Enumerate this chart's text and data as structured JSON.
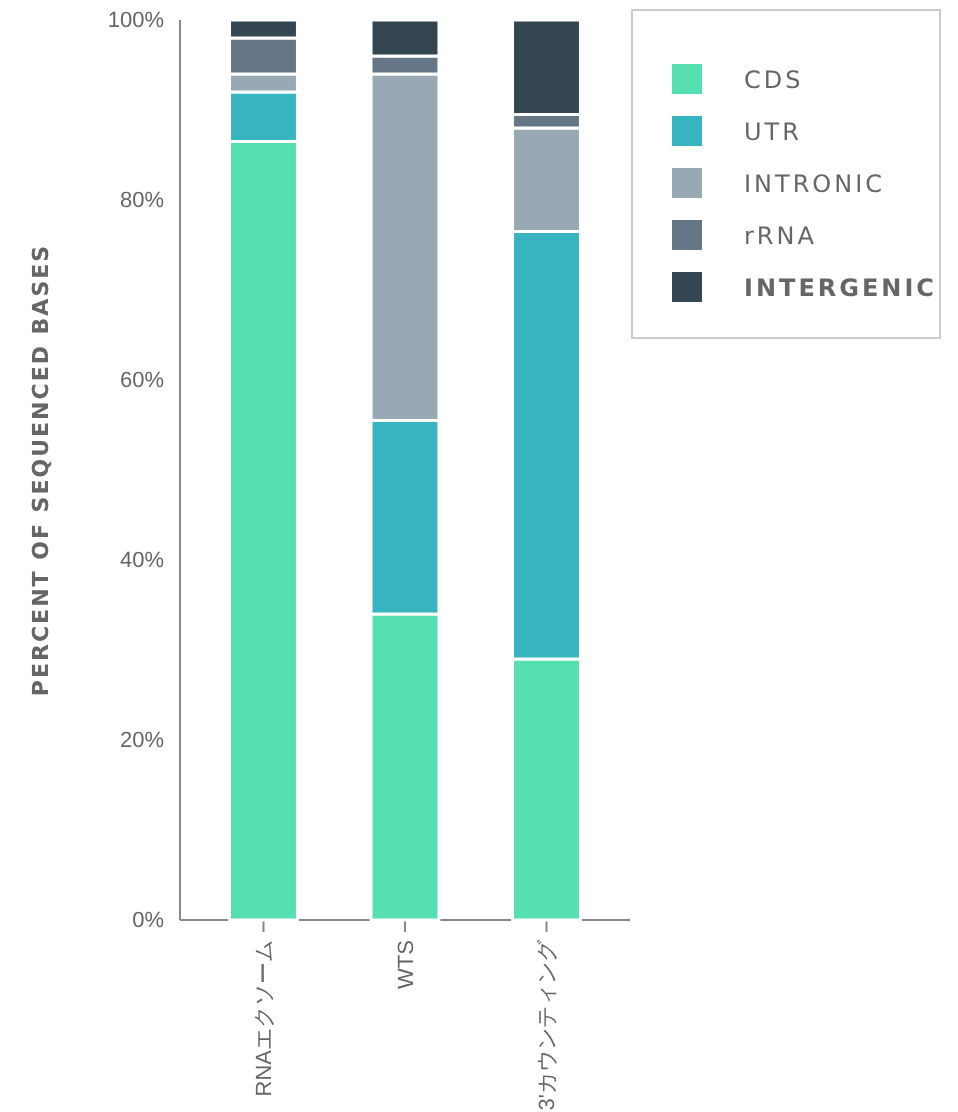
{
  "chart_data": {
    "type": "bar",
    "stacked": true,
    "ylabel": "PERCENT OF SEQUENCED BASES",
    "categories": [
      "RNAエクソーム",
      "WTS",
      "3'カウンティング"
    ],
    "series": [
      {
        "name": "CDS",
        "color": "#56dfb0",
        "values": [
          86.5,
          34,
          29
        ]
      },
      {
        "name": "UTR",
        "color": "#37b4c0",
        "values": [
          5.5,
          21.5,
          47.5
        ]
      },
      {
        "name": "INTRONIC",
        "color": "#98a9b3",
        "values": [
          2,
          38.5,
          11.5
        ]
      },
      {
        "name": "rRNA",
        "color": "#657786",
        "values": [
          4,
          2,
          1.5
        ]
      },
      {
        "name": "INTERGENIC",
        "color": "#354653",
        "values": [
          2,
          4,
          10.5
        ]
      }
    ],
    "ylim": [
      0,
      100
    ],
    "yticks": [
      {
        "value": 0,
        "label": "0%"
      },
      {
        "value": 20,
        "label": "20%"
      },
      {
        "value": 40,
        "label": "40%"
      },
      {
        "value": 60,
        "label": "60%"
      },
      {
        "value": 80,
        "label": "80%"
      },
      {
        "value": 100,
        "label": "100%"
      }
    ],
    "grid": false,
    "legend": "top right"
  }
}
